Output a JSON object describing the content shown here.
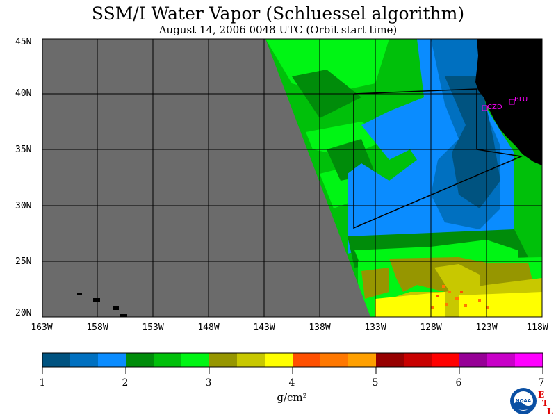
{
  "title": "SSM/I Water Vapor (Schluessel algorithm)",
  "subtitle": "August 14, 2006  0048 UTC  (Orbit start time)",
  "map": {
    "lat_labels": [
      "45N",
      "40N",
      "35N",
      "30N",
      "25N",
      "20N"
    ],
    "lon_labels": [
      "163W",
      "158W",
      "153W",
      "148W",
      "143W",
      "138W",
      "133W",
      "128W",
      "123W",
      "118W"
    ],
    "stations": [
      {
        "code": "CZD",
        "color": "#ff00ff"
      },
      {
        "code": "BLU",
        "color": "#ff00ff"
      }
    ],
    "ocean_color": "#6b6b6b",
    "land_color": "#000000",
    "grid_color": "#000000"
  },
  "colorbar": {
    "colors": [
      "#005380",
      "#0070c0",
      "#0a8cff",
      "#008c0a",
      "#00c00a",
      "#00f514",
      "#969600",
      "#c8c800",
      "#ffff00",
      "#ff5000",
      "#ff7800",
      "#ffa000",
      "#960000",
      "#c80000",
      "#ff0000",
      "#960096",
      "#c800c8",
      "#ff00ff"
    ],
    "tick_labels": [
      "1",
      "2",
      "3",
      "4",
      "5",
      "6",
      "7"
    ],
    "units": "g/cm²"
  },
  "logos": {
    "noaa": "NOAA",
    "etl_letters": [
      "E",
      "T",
      "L"
    ]
  }
}
